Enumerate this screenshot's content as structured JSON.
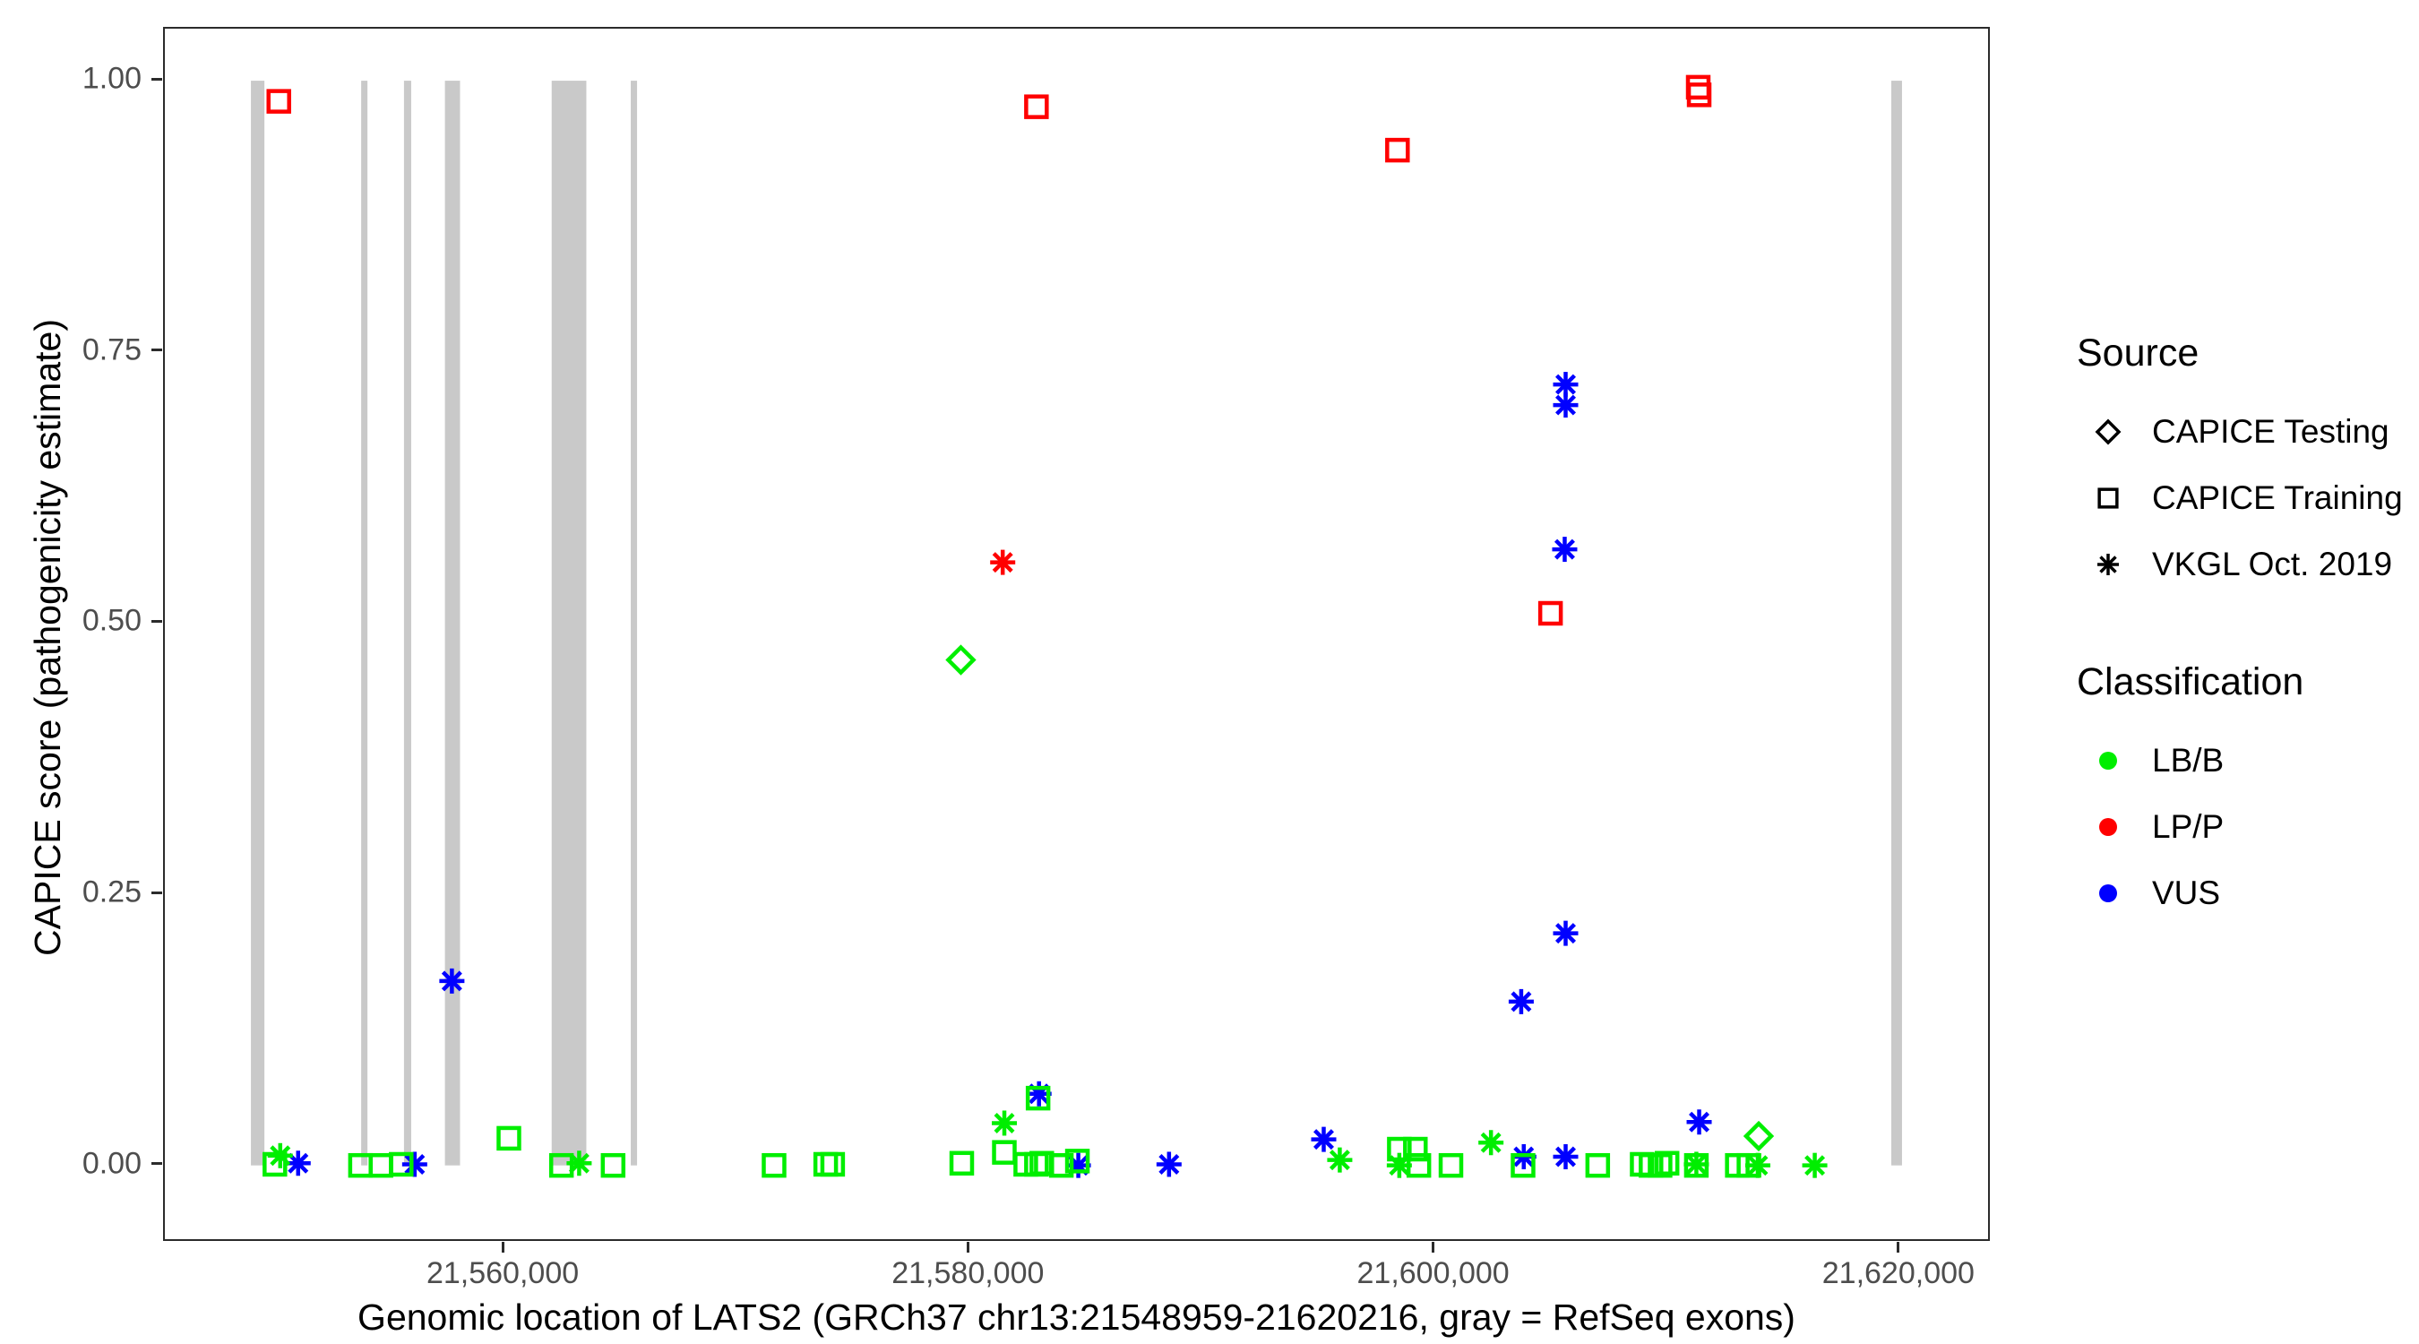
{
  "chart_data": {
    "type": "scatter",
    "title": "",
    "xlabel": "Genomic location of LATS2 (GRCh37 chr13:21548959-21620216, gray = RefSeq exons)",
    "ylabel": "CAPICE score (pathogenicity estimate)",
    "x_range": [
      21545400,
      21623780
    ],
    "y_range": [
      -0.068,
      1.048
    ],
    "grid": "off",
    "legend_position": "right",
    "x_ticks": [
      {
        "value": 21560000,
        "label": "21,560,000"
      },
      {
        "value": 21580000,
        "label": "21,580,000"
      },
      {
        "value": 21600000,
        "label": "21,600,000"
      },
      {
        "value": 21620000,
        "label": "21,620,000"
      }
    ],
    "y_ticks": [
      {
        "value": 0.0,
        "label": "0.00"
      },
      {
        "value": 0.25,
        "label": "0.25"
      },
      {
        "value": 0.5,
        "label": "0.50"
      },
      {
        "value": 0.75,
        "label": "0.75"
      },
      {
        "value": 1.0,
        "label": "1.00"
      }
    ],
    "colors": {
      "LB/B": "#00ee00",
      "LP/P": "#ff0000",
      "VUS": "#0000ff",
      "exon": "#c9c9c9",
      "legend_symbol": "#000000"
    },
    "shape_by_source": {
      "CAPICE Testing": "diamond",
      "CAPICE Training": "square",
      "VKGL Oct. 2019": "asterisk"
    },
    "legend": {
      "source": {
        "title": "Source",
        "items": [
          {
            "label": "CAPICE Testing",
            "shape": "diamond"
          },
          {
            "label": "CAPICE Training",
            "shape": "square"
          },
          {
            "label": "VKGL Oct. 2019",
            "shape": "asterisk"
          }
        ]
      },
      "classification": {
        "title": "Classification",
        "items": [
          {
            "label": "LB/B",
            "color": "#00ee00"
          },
          {
            "label": "LP/P",
            "color": "#ff0000"
          },
          {
            "label": "VUS",
            "color": "#0000ff"
          }
        ]
      }
    },
    "exons": [
      {
        "start": 21549100,
        "end": 21549680
      },
      {
        "start": 21553840,
        "end": 21554110
      },
      {
        "start": 21555680,
        "end": 21555990
      },
      {
        "start": 21557440,
        "end": 21558090
      },
      {
        "start": 21562030,
        "end": 21563520
      },
      {
        "start": 21565430,
        "end": 21565700
      },
      {
        "start": 21619620,
        "end": 21620080
      }
    ],
    "points": [
      {
        "x": 21550300,
        "y": 0.981,
        "source": "CAPICE Training",
        "classification": "LP/P"
      },
      {
        "x": 21582870,
        "y": 0.976,
        "source": "CAPICE Training",
        "classification": "LP/P"
      },
      {
        "x": 21598390,
        "y": 0.936,
        "source": "CAPICE Training",
        "classification": "LP/P"
      },
      {
        "x": 21611320,
        "y": 0.994,
        "source": "CAPICE Training",
        "classification": "LP/P"
      },
      {
        "x": 21611360,
        "y": 0.987,
        "source": "CAPICE Training",
        "classification": "LP/P"
      },
      {
        "x": 21604970,
        "y": 0.509,
        "source": "CAPICE Training",
        "classification": "LP/P"
      },
      {
        "x": 21581420,
        "y": 0.556,
        "source": "VKGL Oct. 2019",
        "classification": "LP/P"
      },
      {
        "x": 21579620,
        "y": 0.466,
        "source": "CAPICE Testing",
        "classification": "LB/B"
      },
      {
        "x": 21613920,
        "y": 0.027,
        "source": "CAPICE Testing",
        "classification": "LB/B"
      },
      {
        "x": 21557740,
        "y": 0.17,
        "source": "VKGL Oct. 2019",
        "classification": "VUS"
      },
      {
        "x": 21605620,
        "y": 0.72,
        "source": "VKGL Oct. 2019",
        "classification": "VUS"
      },
      {
        "x": 21605620,
        "y": 0.701,
        "source": "VKGL Oct. 2019",
        "classification": "VUS"
      },
      {
        "x": 21605580,
        "y": 0.568,
        "source": "VKGL Oct. 2019",
        "classification": "VUS"
      },
      {
        "x": 21605620,
        "y": 0.214,
        "source": "VKGL Oct. 2019",
        "classification": "VUS"
      },
      {
        "x": 21603710,
        "y": 0.151,
        "source": "VKGL Oct. 2019",
        "classification": "VUS"
      },
      {
        "x": 21582980,
        "y": 0.066,
        "source": "VKGL Oct. 2019",
        "classification": "VUS"
      },
      {
        "x": 21611360,
        "y": 0.04,
        "source": "VKGL Oct. 2019",
        "classification": "VUS"
      },
      {
        "x": 21595220,
        "y": 0.024,
        "source": "VKGL Oct. 2019",
        "classification": "VUS"
      },
      {
        "x": 21551130,
        "y": 0.002,
        "source": "VKGL Oct. 2019",
        "classification": "VUS"
      },
      {
        "x": 21556140,
        "y": 0.001,
        "source": "VKGL Oct. 2019",
        "classification": "VUS"
      },
      {
        "x": 21584670,
        "y": 0.0,
        "source": "VKGL Oct. 2019",
        "classification": "VUS"
      },
      {
        "x": 21588570,
        "y": 0.001,
        "source": "VKGL Oct. 2019",
        "classification": "VUS"
      },
      {
        "x": 21603820,
        "y": 0.008,
        "source": "VKGL Oct. 2019",
        "classification": "VUS"
      },
      {
        "x": 21605620,
        "y": 0.008,
        "source": "VKGL Oct. 2019",
        "classification": "VUS"
      },
      {
        "x": 21550360,
        "y": 0.009,
        "source": "VKGL Oct. 2019",
        "classification": "LB/B"
      },
      {
        "x": 21563210,
        "y": 0.002,
        "source": "VKGL Oct. 2019",
        "classification": "LB/B"
      },
      {
        "x": 21581490,
        "y": 0.039,
        "source": "VKGL Oct. 2019",
        "classification": "LB/B"
      },
      {
        "x": 21595910,
        "y": 0.005,
        "source": "VKGL Oct. 2019",
        "classification": "LB/B"
      },
      {
        "x": 21598470,
        "y": 0.0,
        "source": "VKGL Oct. 2019",
        "classification": "LB/B"
      },
      {
        "x": 21602410,
        "y": 0.021,
        "source": "VKGL Oct. 2019",
        "classification": "LB/B"
      },
      {
        "x": 21611240,
        "y": 0.001,
        "source": "VKGL Oct. 2019",
        "classification": "LB/B"
      },
      {
        "x": 21613880,
        "y": 0.0,
        "source": "VKGL Oct. 2019",
        "classification": "LB/B"
      },
      {
        "x": 21616330,
        "y": 0.0,
        "source": "VKGL Oct. 2019",
        "classification": "LB/B"
      },
      {
        "x": 21550130,
        "y": 0.001,
        "source": "CAPICE Training",
        "classification": "LB/B"
      },
      {
        "x": 21553810,
        "y": 0.0,
        "source": "CAPICE Training",
        "classification": "LB/B"
      },
      {
        "x": 21554690,
        "y": 0.0,
        "source": "CAPICE Training",
        "classification": "LB/B"
      },
      {
        "x": 21555560,
        "y": 0.001,
        "source": "CAPICE Training",
        "classification": "LB/B"
      },
      {
        "x": 21560190,
        "y": 0.025,
        "source": "CAPICE Training",
        "classification": "LB/B"
      },
      {
        "x": 21562450,
        "y": 0.0,
        "source": "CAPICE Training",
        "classification": "LB/B"
      },
      {
        "x": 21564670,
        "y": 0.0,
        "source": "CAPICE Training",
        "classification": "LB/B"
      },
      {
        "x": 21571590,
        "y": 0.0,
        "source": "CAPICE Training",
        "classification": "LB/B"
      },
      {
        "x": 21573810,
        "y": 0.001,
        "source": "CAPICE Training",
        "classification": "LB/B"
      },
      {
        "x": 21574110,
        "y": 0.001,
        "source": "CAPICE Training",
        "classification": "LB/B"
      },
      {
        "x": 21579660,
        "y": 0.002,
        "source": "CAPICE Training",
        "classification": "LB/B"
      },
      {
        "x": 21581490,
        "y": 0.012,
        "source": "CAPICE Training",
        "classification": "LB/B"
      },
      {
        "x": 21582410,
        "y": 0.001,
        "source": "CAPICE Training",
        "classification": "LB/B"
      },
      {
        "x": 21582870,
        "y": 0.001,
        "source": "CAPICE Training",
        "classification": "LB/B"
      },
      {
        "x": 21583100,
        "y": 0.002,
        "source": "CAPICE Training",
        "classification": "LB/B"
      },
      {
        "x": 21582940,
        "y": 0.062,
        "source": "CAPICE Training",
        "classification": "LB/B"
      },
      {
        "x": 21583940,
        "y": 0.0,
        "source": "CAPICE Training",
        "classification": "LB/B"
      },
      {
        "x": 21584630,
        "y": 0.004,
        "source": "CAPICE Training",
        "classification": "LB/B"
      },
      {
        "x": 21598470,
        "y": 0.015,
        "source": "CAPICE Training",
        "classification": "LB/B"
      },
      {
        "x": 21599160,
        "y": 0.015,
        "source": "CAPICE Training",
        "classification": "LB/B"
      },
      {
        "x": 21599310,
        "y": 0.0,
        "source": "CAPICE Training",
        "classification": "LB/B"
      },
      {
        "x": 21600690,
        "y": 0.0,
        "source": "CAPICE Training",
        "classification": "LB/B"
      },
      {
        "x": 21603790,
        "y": 0.0,
        "source": "CAPICE Training",
        "classification": "LB/B"
      },
      {
        "x": 21607000,
        "y": 0.0,
        "source": "CAPICE Training",
        "classification": "LB/B"
      },
      {
        "x": 21608910,
        "y": 0.001,
        "source": "CAPICE Training",
        "classification": "LB/B"
      },
      {
        "x": 21609290,
        "y": 0.0,
        "source": "CAPICE Training",
        "classification": "LB/B"
      },
      {
        "x": 21609680,
        "y": 0.0,
        "source": "CAPICE Training",
        "classification": "LB/B"
      },
      {
        "x": 21609980,
        "y": 0.002,
        "source": "CAPICE Training",
        "classification": "LB/B"
      },
      {
        "x": 21611240,
        "y": 0.0,
        "source": "CAPICE Training",
        "classification": "LB/B"
      },
      {
        "x": 21613000,
        "y": 0.0,
        "source": "CAPICE Training",
        "classification": "LB/B"
      },
      {
        "x": 21613500,
        "y": 0.0,
        "source": "CAPICE Training",
        "classification": "LB/B"
      }
    ]
  }
}
